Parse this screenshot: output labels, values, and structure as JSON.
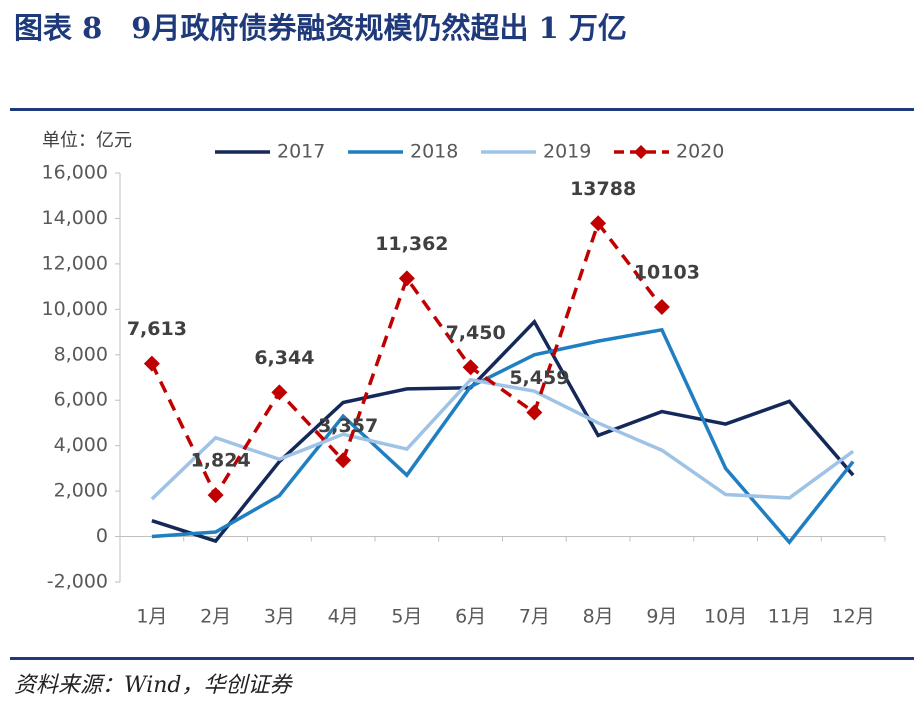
{
  "chart_data": {
    "type": "line",
    "title": "图表 8　9月政府债券融资规模仍然超出 1 万亿",
    "ylabel": "单位：亿元",
    "source": "资料来源：Wind，华创证券",
    "categories": [
      "1月",
      "2月",
      "3月",
      "4月",
      "5月",
      "6月",
      "7月",
      "8月",
      "9月",
      "10月",
      "11月",
      "12月"
    ],
    "series": [
      {
        "name": "2017",
        "color": "#14285a",
        "values": [
          700,
          -200,
          3300,
          5900,
          6500,
          6550,
          9450,
          4450,
          5500,
          4950,
          5950,
          2700
        ]
      },
      {
        "name": "2018",
        "color": "#1f7fc1",
        "values": [
          0,
          200,
          1800,
          5300,
          2700,
          6600,
          8000,
          8600,
          9100,
          3000,
          -250,
          3300
        ]
      },
      {
        "name": "2019",
        "color": "#9fc3e6",
        "values": [
          1650,
          4350,
          3400,
          4500,
          3850,
          6900,
          6400,
          5000,
          3800,
          1850,
          1700,
          3750
        ]
      },
      {
        "name": "2020",
        "color": "#c00000",
        "dashed": true,
        "marker": "diamond",
        "values": [
          7613,
          1824,
          6344,
          3357,
          11362,
          7450,
          5459,
          13788,
          10103,
          null,
          null,
          null
        ],
        "value_labels": [
          "7,613",
          "1,824",
          "6,344",
          "3,357",
          "11,362",
          "7,450",
          "5,459",
          "13788",
          "10103",
          null,
          null,
          null
        ]
      }
    ],
    "ylim": [
      -2000,
      16000
    ],
    "yticks": [
      {
        "value": -2000,
        "label": "-2,000"
      },
      0,
      {
        "value": 2000,
        "label": "2,000"
      },
      {
        "value": 4000,
        "label": "4,000"
      },
      {
        "value": 6000,
        "label": "6,000"
      },
      {
        "value": 8000,
        "label": "8,000"
      },
      {
        "value": 10000,
        "label": "10,000"
      },
      {
        "value": 12000,
        "label": "12,000"
      },
      {
        "value": 14000,
        "label": "14,000"
      },
      {
        "value": 16000,
        "label": "16,000"
      }
    ],
    "legend": "top",
    "grid": false
  }
}
